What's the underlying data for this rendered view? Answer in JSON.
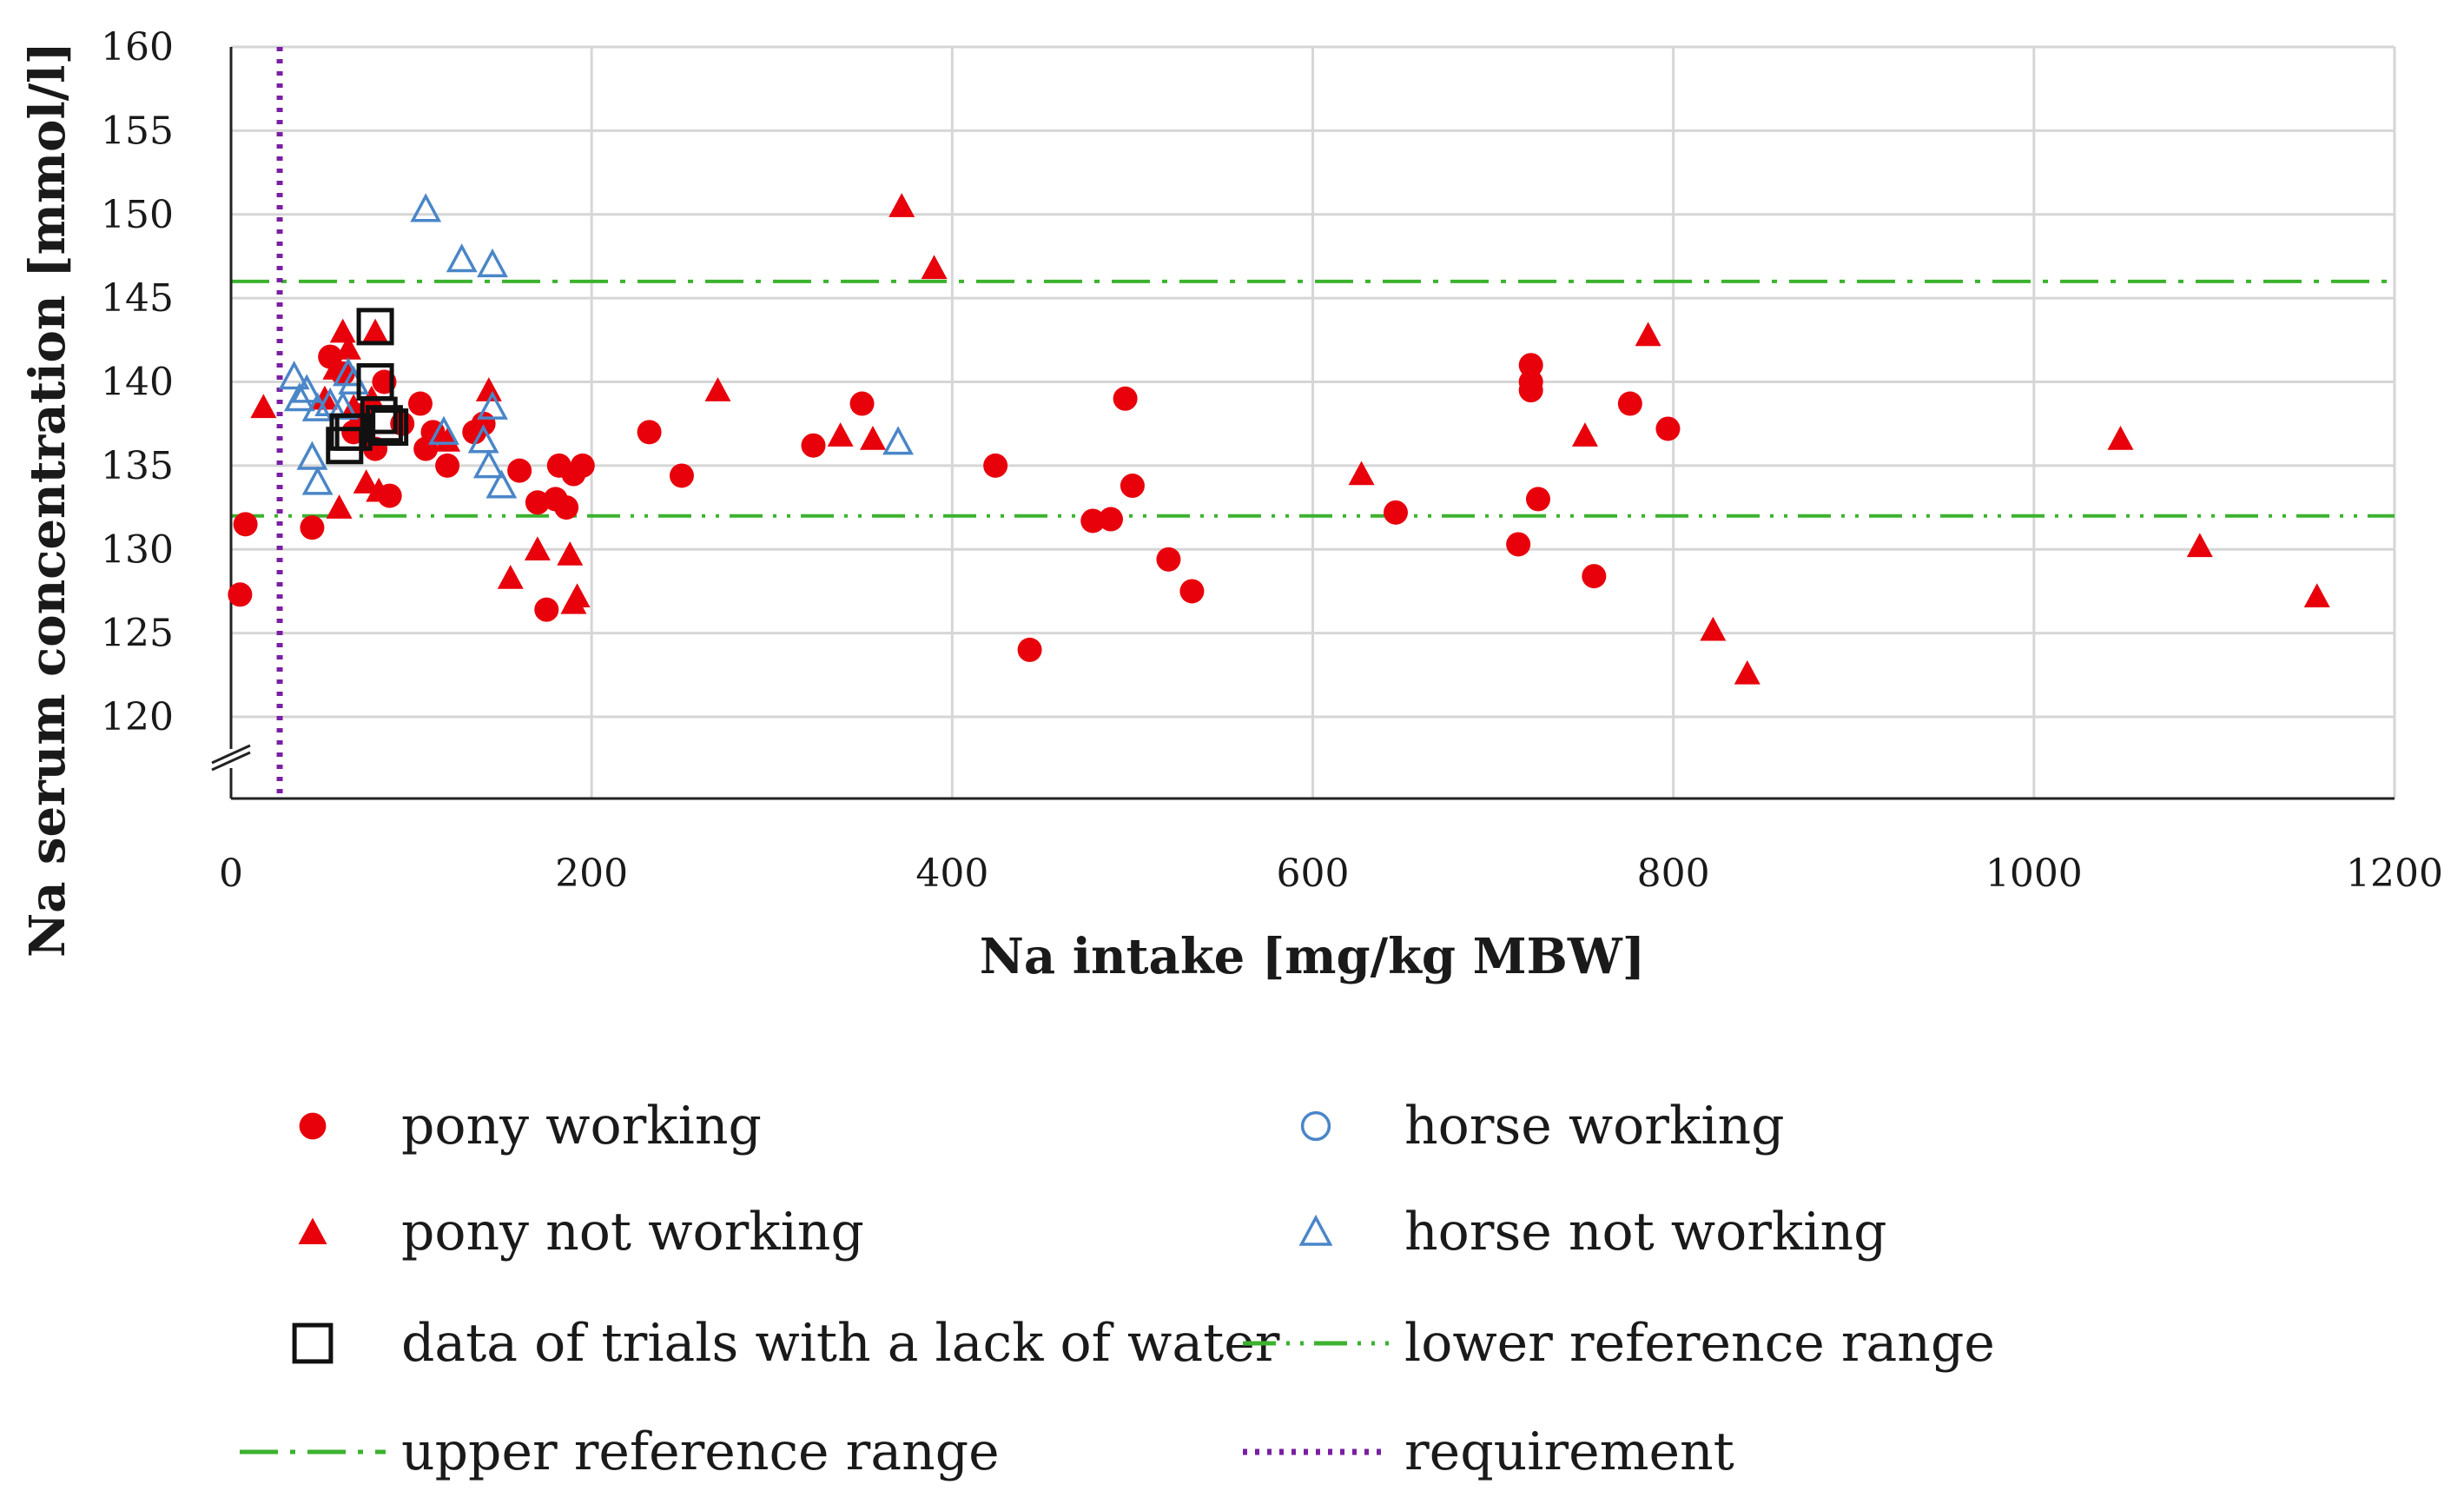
{
  "chart_data": {
    "type": "scatter",
    "title": "",
    "xlabel": "Na intake [mg/kg MBW]",
    "ylabel": "Na serum concentration [mmol/l]",
    "xlim": [
      0,
      1200
    ],
    "ylim": [
      120,
      160
    ],
    "y_axis_break": true,
    "xticks": [
      "0",
      "200",
      "400",
      "600",
      "800",
      "1000",
      "1200"
    ],
    "yticks": [
      "120",
      "125",
      "130",
      "135",
      "140",
      "145",
      "150",
      "155",
      "160"
    ],
    "grid": true,
    "colors": {
      "pony": "#e8000b",
      "horse": "#4a86c8",
      "lack_of_water": "#111111",
      "reference": "#3cb22f",
      "requirement": "#7a1fa2"
    },
    "series": [
      {
        "name": "pony working",
        "marker": "filled-circle",
        "points": [
          [
            5,
            127.3
          ],
          [
            8,
            131.5
          ],
          [
            45,
            131.3
          ],
          [
            55,
            141.5
          ],
          [
            62,
            140.5
          ],
          [
            68,
            137
          ],
          [
            72,
            138
          ],
          [
            80,
            136
          ],
          [
            85,
            140
          ],
          [
            88,
            133.2
          ],
          [
            95,
            137.5
          ],
          [
            105,
            138.7
          ],
          [
            108,
            136
          ],
          [
            112,
            137
          ],
          [
            120,
            135
          ],
          [
            135,
            137
          ],
          [
            140,
            137.5
          ],
          [
            160,
            134.7
          ],
          [
            170,
            132.8
          ],
          [
            175,
            126.4
          ],
          [
            180,
            133
          ],
          [
            182,
            135
          ],
          [
            186,
            132.5
          ],
          [
            190,
            134.5
          ],
          [
            195,
            135
          ],
          [
            232,
            137
          ],
          [
            250,
            134.4
          ],
          [
            323,
            136.2
          ],
          [
            350,
            138.7
          ],
          [
            424,
            135
          ],
          [
            443,
            124
          ],
          [
            478,
            131.7
          ],
          [
            488,
            131.8
          ],
          [
            496,
            139
          ],
          [
            500,
            133.8
          ],
          [
            520,
            129.4
          ],
          [
            533,
            127.5
          ],
          [
            646,
            132.2
          ],
          [
            714,
            130.3
          ],
          [
            721,
            141
          ],
          [
            721,
            140
          ],
          [
            721,
            139.5
          ],
          [
            725,
            133
          ],
          [
            756,
            128.4
          ],
          [
            776,
            138.7
          ],
          [
            797,
            137.2
          ]
        ]
      },
      {
        "name": "pony not working",
        "marker": "filled-triangle",
        "points": [
          [
            18,
            138.5
          ],
          [
            52,
            139
          ],
          [
            58,
            140.8
          ],
          [
            60,
            132.5
          ],
          [
            62,
            143
          ],
          [
            65,
            142
          ],
          [
            68,
            138.5
          ],
          [
            75,
            134
          ],
          [
            78,
            139
          ],
          [
            80,
            143
          ],
          [
            82,
            133.5
          ],
          [
            120,
            136.5
          ],
          [
            143,
            139.5
          ],
          [
            155,
            128.3
          ],
          [
            170,
            130
          ],
          [
            188,
            129.7
          ],
          [
            190,
            126.8
          ],
          [
            192,
            127.2
          ],
          [
            270,
            139.5
          ],
          [
            338,
            136.8
          ],
          [
            356,
            136.6
          ],
          [
            372,
            150.5
          ],
          [
            390,
            146.8
          ],
          [
            627,
            134.5
          ],
          [
            751,
            136.8
          ],
          [
            786,
            142.8
          ],
          [
            822,
            125.2
          ],
          [
            841,
            122.6
          ],
          [
            1048,
            136.6
          ],
          [
            1092,
            130.2
          ],
          [
            1157,
            127.2
          ]
        ]
      },
      {
        "name": "horse working",
        "marker": "open-circle",
        "points": []
      },
      {
        "name": "horse not working",
        "marker": "open-triangle",
        "points": [
          [
            35,
            140.3
          ],
          [
            38,
            139
          ],
          [
            42,
            139.5
          ],
          [
            45,
            135.5
          ],
          [
            48,
            138.4
          ],
          [
            48,
            134
          ],
          [
            55,
            138.7
          ],
          [
            62,
            138.5
          ],
          [
            65,
            140.5
          ],
          [
            68,
            140
          ],
          [
            108,
            150.3
          ],
          [
            118,
            137
          ],
          [
            128,
            147.3
          ],
          [
            140,
            136.5
          ],
          [
            143,
            135
          ],
          [
            145,
            147
          ],
          [
            145,
            138.5
          ],
          [
            150,
            133.8
          ],
          [
            370,
            136.4
          ]
        ]
      },
      {
        "name": "data of trials with a lack of water",
        "marker": "open-square",
        "points": [
          [
            63,
            136.2
          ],
          [
            65,
            137
          ],
          [
            68,
            137
          ],
          [
            80,
            143.3
          ],
          [
            80,
            140
          ],
          [
            82,
            138
          ],
          [
            85,
            137.5
          ],
          [
            88,
            137.3
          ]
        ]
      }
    ],
    "reference_lines": [
      {
        "name": "lower reference range",
        "axis": "y",
        "value": 132,
        "style": "dash-dot-dot"
      },
      {
        "name": "upper reference range",
        "axis": "y",
        "value": 146,
        "style": "dash-dot"
      },
      {
        "name": "requirement",
        "axis": "x",
        "value": 27,
        "style": "dotted"
      }
    ],
    "legend": {
      "position": "bottom",
      "items": [
        {
          "label": "pony working",
          "symbol": "filled-circle"
        },
        {
          "label": "horse working",
          "symbol": "open-circle"
        },
        {
          "label": "pony not working",
          "symbol": "filled-triangle"
        },
        {
          "label": "horse not working",
          "symbol": "open-triangle"
        },
        {
          "label": "data of trials with a lack of water",
          "symbol": "open-square"
        },
        {
          "label": "lower reference range",
          "symbol": "dash-dot-dot-line"
        },
        {
          "label": "upper reference range",
          "symbol": "dash-dot-line"
        },
        {
          "label": "requirement",
          "symbol": "dotted-line"
        }
      ]
    }
  }
}
